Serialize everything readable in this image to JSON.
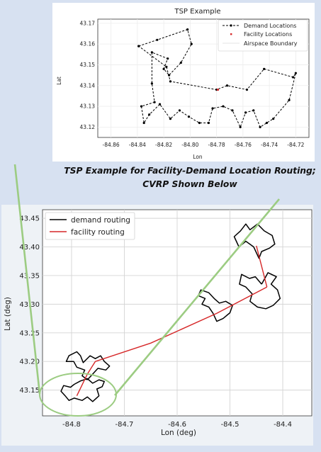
{
  "caption": {
    "line1": "TSP Example for Facility-Demand Location Routing;",
    "line2": "CVRP Shown Below"
  },
  "colors": {
    "demand": "#000000",
    "facility": "#d62728",
    "annotation": "#9ccc82"
  },
  "chart_data": [
    {
      "type": "line",
      "title": "TSP Example",
      "xlabel": "Lon",
      "ylabel": "Lat",
      "xlim": [
        -84.87,
        -84.71
      ],
      "ylim": [
        43.115,
        43.172
      ],
      "xticks": [
        "-84.86",
        "-84.84",
        "-84.82",
        "-84.80",
        "-84.78",
        "-84.76",
        "-84.74",
        "-84.72"
      ],
      "yticks": [
        "43.12",
        "43.13",
        "43.14",
        "43.15",
        "43.16",
        "43.17"
      ],
      "grid": true,
      "legend_position": "top-right",
      "legend": [
        "Demand Locations",
        "Facility Locations",
        "Airspace Boundary"
      ],
      "series": [
        {
          "name": "Demand Locations",
          "style": "dashed-with-markers",
          "x": [
            -84.839,
            -84.825,
            -84.802,
            -84.799,
            -84.807,
            -84.816,
            -84.82,
            -84.817,
            -84.829,
            -84.829,
            -84.827,
            -84.837,
            -84.835,
            -84.831,
            -84.823,
            -84.815,
            -84.808,
            -84.801,
            -84.793,
            -84.786,
            -84.783,
            -84.775,
            -84.768,
            -84.762,
            -84.758,
            -84.752,
            -84.747,
            -84.742,
            -84.737,
            -84.725,
            -84.72,
            -84.722,
            -84.744,
            -84.757,
            -84.772,
            -84.78,
            -84.815,
            -84.818,
            -84.839
          ],
          "y": [
            43.159,
            43.162,
            43.167,
            43.16,
            43.151,
            43.145,
            43.148,
            43.153,
            43.156,
            43.141,
            43.132,
            43.13,
            43.122,
            43.126,
            43.131,
            43.124,
            43.128,
            43.125,
            43.122,
            43.122,
            43.129,
            43.13,
            43.128,
            43.12,
            43.127,
            43.128,
            43.12,
            43.122,
            43.124,
            43.133,
            43.146,
            43.144,
            43.148,
            43.138,
            43.14,
            43.138,
            43.142,
            43.149,
            43.159
          ]
        },
        {
          "name": "Facility Locations",
          "style": "marker",
          "x": [
            -84.779
          ],
          "y": [
            43.138
          ]
        }
      ]
    },
    {
      "type": "line",
      "title": "",
      "xlabel": "Lon (deg)",
      "ylabel": "Lat (deg)",
      "xlim": [
        -84.855,
        -84.345
      ],
      "ylim": [
        43.105,
        43.465
      ],
      "xticks": [
        -84.8,
        -84.7,
        -84.6,
        -84.5,
        -84.4
      ],
      "yticks": [
        43.15,
        43.2,
        43.25,
        43.3,
        43.35,
        43.4,
        43.45
      ],
      "grid": true,
      "legend_position": "top-left",
      "legend": [
        "demand routing",
        "facility routing"
      ],
      "series": [
        {
          "name": "demand routing",
          "clusters": [
            {
              "x": [
                -84.795,
                -84.802,
                -84.815,
                -84.82,
                -84.812,
                -84.805,
                -84.795,
                -84.78,
                -84.77,
                -84.76,
                -84.748,
                -84.752,
                -84.742,
                -84.738,
                -84.748,
                -84.76,
                -84.77,
                -84.783,
                -84.795
              ],
              "y": [
                43.16,
                43.155,
                43.158,
                43.148,
                43.14,
                43.132,
                43.136,
                43.132,
                43.138,
                43.13,
                43.14,
                43.152,
                43.156,
                43.165,
                43.168,
                43.162,
                43.17,
                43.166,
                43.16
              ]
            },
            {
              "x": [
                -84.77,
                -84.78,
                -84.775,
                -84.79,
                -84.796,
                -84.81,
                -84.805,
                -84.79,
                -84.783,
                -84.778,
                -84.765,
                -84.755,
                -84.745,
                -84.738,
                -84.728,
                -84.735,
                -84.75,
                -84.76,
                -84.77
              ],
              "y": [
                43.168,
                43.175,
                43.185,
                43.19,
                43.2,
                43.2,
                43.21,
                43.217,
                43.21,
                43.198,
                43.21,
                43.205,
                43.21,
                43.2,
                43.192,
                43.185,
                43.188,
                43.178,
                43.168
              ]
            },
            {
              "x": [
                -84.532,
                -84.54,
                -84.553,
                -84.547,
                -84.56,
                -84.555,
                -84.54,
                -84.53,
                -84.52,
                -84.508,
                -84.495,
                -84.5,
                -84.513,
                -84.525,
                -84.532
              ],
              "y": [
                43.284,
                43.295,
                43.3,
                43.31,
                43.315,
                43.325,
                43.32,
                43.31,
                43.302,
                43.305,
                43.298,
                43.285,
                43.275,
                43.27,
                43.284
              ]
            },
            {
              "x": [
                -84.44,
                -84.452,
                -84.463,
                -84.478,
                -84.482,
                -84.47,
                -84.458,
                -84.462,
                -84.448,
                -84.432,
                -84.418,
                -84.405,
                -84.41,
                -84.422,
                -84.412,
                -84.428,
                -84.44
              ],
              "y": [
                43.335,
                43.348,
                43.345,
                43.352,
                43.335,
                43.33,
                43.318,
                43.305,
                43.295,
                43.292,
                43.298,
                43.31,
                43.325,
                43.335,
                43.348,
                43.355,
                43.335
              ]
            },
            {
              "x": [
                -84.455,
                -84.47,
                -84.483,
                -84.492,
                -84.48,
                -84.47,
                -84.462,
                -84.448,
                -84.435,
                -84.42,
                -84.415,
                -84.425,
                -84.44,
                -84.445,
                -84.455
              ],
              "y": [
                43.4,
                43.41,
                43.4,
                43.418,
                43.428,
                43.44,
                43.43,
                43.44,
                43.428,
                43.42,
                43.405,
                43.398,
                43.392,
                43.38,
                43.4
              ]
            }
          ]
        },
        {
          "name": "facility routing",
          "segments": [
            {
              "x": [
                -84.79,
                -84.77,
                -84.755,
                -84.65,
                -84.525,
                -84.43
              ],
              "y": [
                43.14,
                43.178,
                43.2,
                43.232,
                43.284,
                43.33
              ]
            },
            {
              "x": [
                -84.43,
                -84.45
              ],
              "y": [
                43.33,
                43.402
              ]
            }
          ]
        }
      ]
    }
  ]
}
